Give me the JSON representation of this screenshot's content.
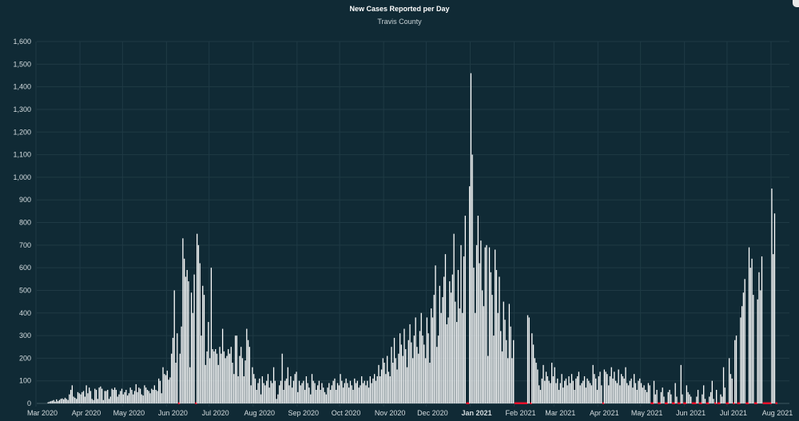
{
  "chart_data": {
    "type": "bar",
    "title": "New Cases Reported per Day",
    "subtitle": "Travis County",
    "xlabel": "",
    "ylabel": "",
    "ylim": [
      0,
      1600
    ],
    "yticks": [
      0,
      100,
      200,
      300,
      400,
      500,
      600,
      700,
      800,
      900,
      1000,
      1100,
      1200,
      1300,
      1400,
      1500,
      1600
    ],
    "ytick_labels": [
      "0",
      "100",
      "200",
      "300",
      "400",
      "500",
      "600",
      "700",
      "800",
      "900",
      "1,000",
      "1,100",
      "1,200",
      "1,300",
      "1,400",
      "1,500",
      "1,600"
    ],
    "xticks": [
      {
        "label": "Mar 2020",
        "date": "2020-03-01"
      },
      {
        "label": "Apr 2020",
        "date": "2020-04-01"
      },
      {
        "label": "May 2020",
        "date": "2020-05-01"
      },
      {
        "label": "Jun 2020",
        "date": "2020-06-01"
      },
      {
        "label": "Jul 2020",
        "date": "2020-07-01"
      },
      {
        "label": "Aug 2020",
        "date": "2020-08-01"
      },
      {
        "label": "Sep 2020",
        "date": "2020-09-01"
      },
      {
        "label": "Oct 2020",
        "date": "2020-10-01"
      },
      {
        "label": "Nov 2020",
        "date": "2020-11-01"
      },
      {
        "label": "Dec 2020",
        "date": "2020-12-01"
      },
      {
        "label": "Jan 2021",
        "date": "2021-01-01",
        "bold": true
      },
      {
        "label": "Feb 2021",
        "date": "2021-02-01"
      },
      {
        "label": "Mar 2021",
        "date": "2021-03-01"
      },
      {
        "label": "Apr 2021",
        "date": "2021-04-01"
      },
      {
        "label": "May 2021",
        "date": "2021-05-01"
      },
      {
        "label": "Jun 2021",
        "date": "2021-06-01"
      },
      {
        "label": "Jul 2021",
        "date": "2021-07-01"
      },
      {
        "label": "Aug 2021",
        "date": "2021-08-01"
      }
    ],
    "x_start": "2020-03-05",
    "grid": true,
    "bar_color": "#ffffff",
    "zero_marker_color": "#e8102a",
    "values": [
      5,
      8,
      10,
      12,
      15,
      8,
      18,
      10,
      15,
      20,
      22,
      18,
      25,
      20,
      15,
      40,
      60,
      80,
      30,
      25,
      20,
      50,
      45,
      40,
      50,
      55,
      30,
      80,
      45,
      70,
      55,
      20,
      15,
      65,
      60,
      20,
      70,
      75,
      65,
      15,
      55,
      55,
      60,
      20,
      30,
      65,
      60,
      70,
      60,
      30,
      40,
      55,
      65,
      40,
      50,
      60,
      35,
      45,
      70,
      60,
      40,
      55,
      85,
      50,
      70,
      65,
      40,
      35,
      80,
      70,
      60,
      55,
      45,
      65,
      60,
      80,
      60,
      55,
      110,
      100,
      45,
      160,
      130,
      125,
      145,
      105,
      115,
      220,
      290,
      500,
      180,
      310,
      0,
      220,
      340,
      730,
      640,
      560,
      590,
      540,
      160,
      490,
      400,
      570,
      0,
      750,
      700,
      620,
      300,
      520,
      480,
      170,
      230,
      360,
      200,
      600,
      240,
      230,
      240,
      220,
      170,
      250,
      220,
      330,
      230,
      200,
      210,
      240,
      220,
      250,
      180,
      130,
      300,
      300,
      120,
      210,
      250,
      200,
      120,
      190,
      330,
      280,
      250,
      80,
      160,
      130,
      110,
      60,
      90,
      110,
      40,
      120,
      90,
      80,
      100,
      130,
      70,
      100,
      90,
      160,
      100,
      20,
      40,
      80,
      100,
      220,
      60,
      100,
      110,
      160,
      80,
      120,
      70,
      100,
      130,
      140,
      50,
      100,
      80,
      90,
      100,
      60,
      120,
      90,
      70,
      40,
      130,
      100,
      90,
      60,
      80,
      100,
      60,
      90,
      70,
      50,
      40,
      70,
      90,
      60,
      80,
      100,
      110,
      60,
      90,
      80,
      130,
      100,
      70,
      90,
      110,
      90,
      70,
      100,
      80,
      60,
      110,
      90,
      100,
      70,
      80,
      120,
      90,
      100,
      80,
      100,
      70,
      120,
      90,
      110,
      130,
      100,
      120,
      170,
      120,
      150,
      200,
      180,
      130,
      210,
      140,
      120,
      250,
      180,
      290,
      200,
      150,
      220,
      310,
      260,
      210,
      330,
      240,
      160,
      280,
      350,
      270,
      200,
      300,
      380,
      250,
      220,
      320,
      400,
      300,
      260,
      200,
      380,
      310,
      180,
      420,
      380,
      480,
      610,
      250,
      300,
      520,
      400,
      470,
      560,
      660,
      350,
      380,
      540,
      490,
      570,
      750,
      450,
      360,
      590,
      420,
      700,
      400,
      650,
      830,
      0,
      0,
      960,
      1460,
      1100,
      600,
      400,
      700,
      830,
      620,
      720,
      500,
      430,
      690,
      700,
      210,
      690,
      580,
      480,
      300,
      680,
      590,
      400,
      560,
      320,
      230,
      450,
      370,
      280,
      200,
      440,
      340,
      200,
      280,
      0,
      0,
      0,
      0,
      0,
      0,
      0,
      0,
      0,
      390,
      380,
      0,
      310,
      260,
      200,
      180,
      150,
      80,
      60,
      110,
      170,
      100,
      140,
      120,
      100,
      90,
      180,
      120,
      160,
      90,
      110,
      60,
      90,
      130,
      70,
      100,
      110,
      80,
      120,
      90,
      130,
      100,
      60,
      110,
      120,
      140,
      80,
      90,
      100,
      120,
      70,
      110,
      100,
      90,
      80,
      170,
      130,
      110,
      60,
      120,
      140,
      80,
      0,
      150,
      140,
      130,
      80,
      120,
      160,
      110,
      140,
      100,
      90,
      150,
      80,
      130,
      120,
      110,
      160,
      90,
      80,
      100,
      110,
      70,
      130,
      90,
      60,
      100,
      110,
      90,
      70,
      80,
      60,
      50,
      90,
      80,
      0,
      0,
      100,
      40,
      60,
      0,
      0,
      50,
      70,
      30,
      0,
      0,
      50,
      60,
      40,
      0,
      0,
      90,
      30,
      0,
      0,
      170,
      40,
      0,
      0,
      80,
      50,
      40,
      30,
      0,
      0,
      0,
      30,
      60,
      0,
      0,
      40,
      80,
      20,
      0,
      0,
      30,
      50,
      100,
      20,
      0,
      60,
      0,
      0,
      40,
      30,
      160,
      70,
      0,
      0,
      200,
      130,
      110,
      0,
      280,
      300,
      0,
      0,
      380,
      430,
      490,
      550,
      0,
      0,
      690,
      600,
      640,
      480,
      0,
      0,
      460,
      580,
      500,
      650,
      0,
      0,
      0,
      0,
      0,
      0,
      950,
      660,
      840,
      0
    ]
  }
}
